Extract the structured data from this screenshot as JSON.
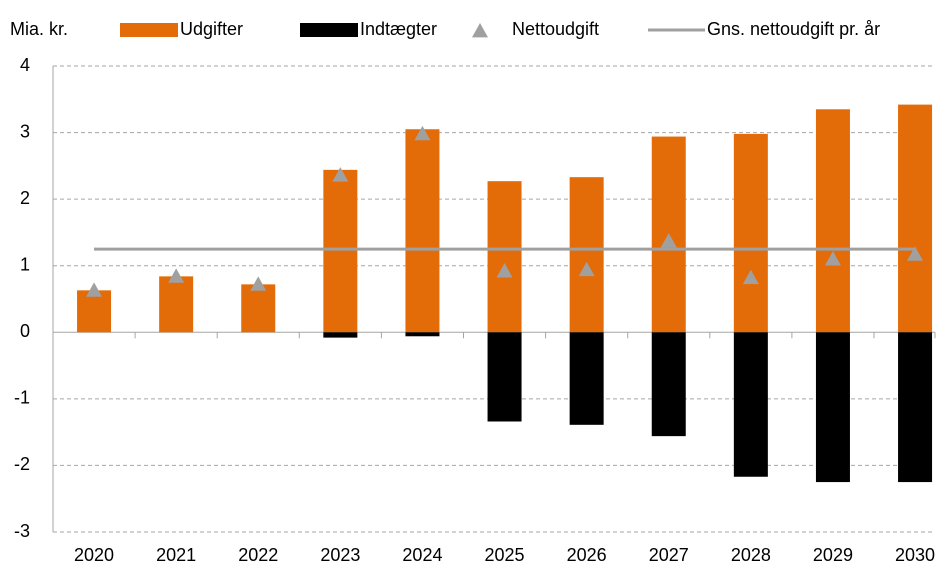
{
  "chart_data": {
    "type": "bar",
    "y_label": "Mia. kr.",
    "categories": [
      "2020",
      "2021",
      "2022",
      "2023",
      "2024",
      "2025",
      "2026",
      "2027",
      "2028",
      "2029",
      "2030"
    ],
    "series": [
      {
        "name": "Udgifter",
        "kind": "bar",
        "color": "#e36c09",
        "values": [
          0.63,
          0.84,
          0.72,
          2.44,
          3.05,
          2.27,
          2.33,
          2.94,
          2.98,
          3.35,
          3.42
        ]
      },
      {
        "name": "Indtægter",
        "kind": "bar",
        "color": "#000000",
        "values": [
          0,
          0,
          0,
          -0.08,
          -0.06,
          -1.34,
          -1.39,
          -1.56,
          -2.17,
          -2.25,
          -2.25
        ]
      },
      {
        "name": "Nettoudgift",
        "kind": "marker",
        "color": "#a0a0a0",
        "values": [
          0.63,
          0.84,
          0.72,
          2.36,
          2.98,
          0.92,
          0.94,
          1.37,
          0.82,
          1.1,
          1.17
        ]
      },
      {
        "name": "Gns. nettoudgift pr. år",
        "kind": "line",
        "color": "#a0a0a0",
        "values": [
          1.25,
          1.25,
          1.25,
          1.25,
          1.25,
          1.25,
          1.25,
          1.25,
          1.25,
          1.25,
          1.25
        ]
      }
    ],
    "ylim": [
      -3,
      4
    ],
    "yticks": [
      -3,
      -2,
      -1,
      0,
      1,
      2,
      3,
      4
    ],
    "grid": true
  }
}
